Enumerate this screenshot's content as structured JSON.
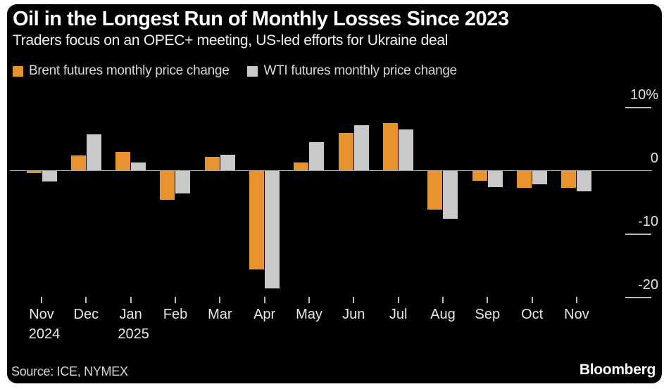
{
  "header": {
    "title": "Oil in the Longest Run of Monthly Losses Since 2023",
    "subtitle": "Traders focus on an OPEC+ meeting, US-led efforts for Ukraine deal"
  },
  "legend": [
    {
      "label": "Brent futures monthly price change",
      "color": "#e8932c"
    },
    {
      "label": "WTI futures monthly price change",
      "color": "#c9c9c9"
    }
  ],
  "chart_data": {
    "type": "bar",
    "title": "Oil in the Longest Run of Monthly Losses Since 2023",
    "subtitle": "Traders focus on an OPEC+ meeting, US-led efforts for Ukraine deal",
    "categories": [
      "Nov",
      "Dec",
      "Jan",
      "Feb",
      "Mar",
      "Apr",
      "May",
      "Jun",
      "Jul",
      "Aug",
      "Sep",
      "Oct",
      "Nov"
    ],
    "years": [
      "2024",
      "",
      "2025",
      "",
      "",
      "",
      "",
      "",
      "",
      "",
      "",
      "",
      ""
    ],
    "series": [
      {
        "name": "Brent futures monthly price change",
        "color": "#e8932c",
        "values": [
          -0.3,
          2.3,
          2.9,
          -4.5,
          2.1,
          -15.5,
          1.2,
          5.9,
          7.4,
          -6.1,
          -1.6,
          -2.7,
          -2.7
        ]
      },
      {
        "name": "WTI futures monthly price change",
        "color": "#c9c9c9",
        "values": [
          -1.7,
          5.7,
          1.2,
          -3.6,
          2.4,
          -18.6,
          4.4,
          7.1,
          6.4,
          -7.6,
          -2.5,
          -2.1,
          -3.2
        ]
      }
    ],
    "xlabel": "",
    "ylabel": "",
    "ylim": [
      -22,
      12
    ],
    "y_ticks": [
      {
        "value": 10,
        "label": "10%"
      },
      {
        "value": 0,
        "label": "0"
      },
      {
        "value": -10,
        "label": "-10"
      },
      {
        "value": -20,
        "label": "-20"
      }
    ],
    "grid": "zero-line-only",
    "legend_position": "top-left"
  },
  "footer": {
    "source": "Source: ICE, NYMEX",
    "brand": "Bloomberg"
  }
}
